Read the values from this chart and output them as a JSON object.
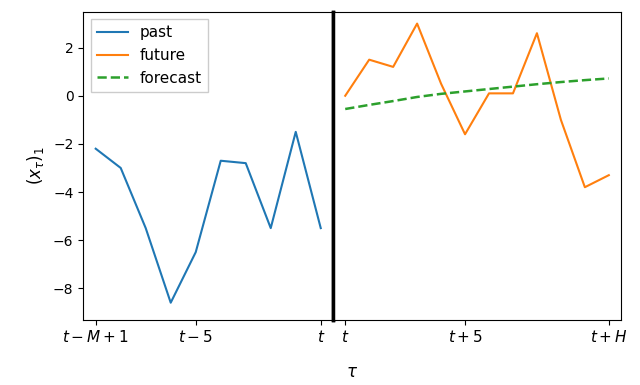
{
  "past_x": [
    0,
    1,
    2,
    3,
    4,
    5,
    6,
    7,
    8,
    9
  ],
  "past_y": [
    -2.2,
    -3.0,
    -5.5,
    -8.6,
    -6.5,
    -2.7,
    -2.8,
    -5.5,
    -1.5,
    -5.5
  ],
  "future_x": [
    0,
    1,
    2,
    3,
    4,
    5,
    6,
    7,
    8,
    9,
    10,
    11
  ],
  "future_y": [
    0.0,
    1.5,
    1.2,
    3.0,
    0.5,
    -1.6,
    0.1,
    0.1,
    2.6,
    -1.0,
    -3.8,
    -3.3
  ],
  "forecast_x": [
    0,
    1,
    2,
    3,
    4,
    5,
    6,
    7,
    8,
    9,
    10,
    11
  ],
  "forecast_y": [
    -0.55,
    -0.38,
    -0.22,
    -0.05,
    0.08,
    0.18,
    0.28,
    0.38,
    0.48,
    0.57,
    0.65,
    0.72
  ],
  "past_color": "#1f77b4",
  "future_color": "#ff7f0e",
  "forecast_color": "#2ca02c",
  "ylabel": "$(x_\\tau)_1$",
  "xlabel": "$\\tau$",
  "ylim": [
    -9.3,
    3.5
  ],
  "legend_labels": [
    "past",
    "future",
    "forecast"
  ],
  "background_color": "white"
}
